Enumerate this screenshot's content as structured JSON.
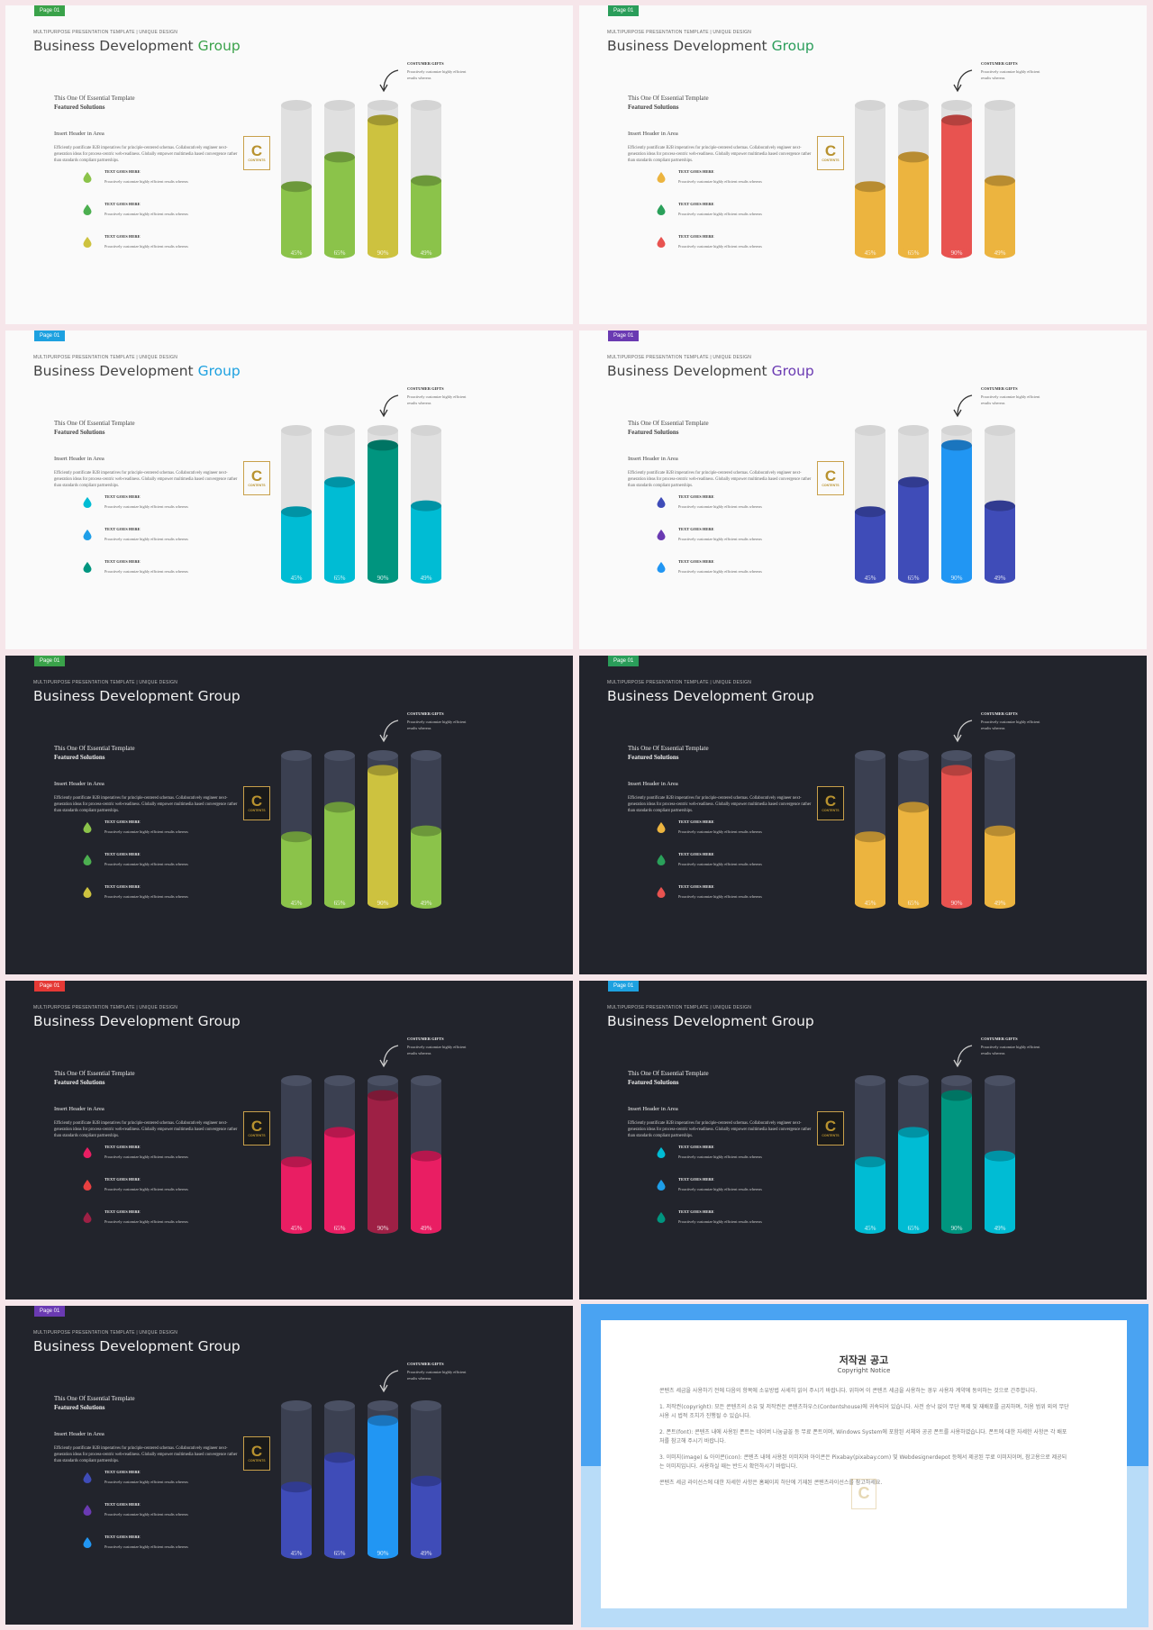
{
  "common": {
    "page_label": "Page 01",
    "supertitle": "MULTIPURPOSE PRESENTATION TEMPLATE | UNIQUE DESIGN",
    "title_main": "Business Development",
    "title_accent": "Group",
    "subhead_line1": "This One Of Essential Template",
    "subhead_line2": "Featured Solutions",
    "insert_header": "Insert Header in Area",
    "body_text": "Efficiently pontificate B2B imperatives for principle-centered schemas. Collaboratively engineer next-generation ideas for process-centric web-readiness. Globally empower multimedia based convergence rather than standards compliant partnerships.",
    "bullet_title": "TEXT GOES HERE",
    "bullet_desc": "Proactively customize highly efficient results whereas",
    "gift_title": "COSTUMER GIFTS",
    "gift_desc": "Proactively customize highly efficient results whereas",
    "logo_letter": "C",
    "logo_text": "CONTENTS",
    "icons": {
      "drop": "water-drop-icon",
      "arrow": "curved-arrow-icon",
      "logo": "contents-logo-icon"
    }
  },
  "bar_values": [
    45,
    65,
    90,
    49
  ],
  "bar_labels": [
    "45%",
    "65%",
    "90%",
    "49%"
  ],
  "slides": [
    {
      "theme": "light",
      "tag_color": "#3aa24a",
      "accent_color": "#3aa24a",
      "bar_colors": [
        "#8bc34a",
        "#8bc34a",
        "#cdc23f",
        "#8bc34a"
      ],
      "drop_colors": [
        "#8bc34a",
        "#4caf50",
        "#cdc23f"
      ]
    },
    {
      "theme": "light",
      "tag_color": "#2a9d5a",
      "accent_color": "#2a9d5a",
      "bar_colors": [
        "#ecb43f",
        "#ecb43f",
        "#e85350",
        "#ecb43f"
      ],
      "drop_colors": [
        "#ecb43f",
        "#2aa05a",
        "#e85350"
      ]
    },
    {
      "theme": "light",
      "tag_color": "#1da1e0",
      "accent_color": "#1da1e0",
      "bar_colors": [
        "#00bcd4",
        "#00bcd4",
        "#00957f",
        "#00bcd4"
      ],
      "drop_colors": [
        "#00bcd4",
        "#1e9ee8",
        "#00957f"
      ]
    },
    {
      "theme": "light",
      "tag_color": "#6a3ab2",
      "accent_color": "#6a3ab2",
      "bar_colors": [
        "#3f4cb8",
        "#3f4cb8",
        "#2196f3",
        "#3f4cb8"
      ],
      "drop_colors": [
        "#3f4cb8",
        "#6a3ab2",
        "#2196f3"
      ]
    },
    {
      "theme": "dark",
      "tag_color": "#3aa24a",
      "accent_color": "#f2f2f2",
      "bar_colors": [
        "#8bc34a",
        "#8bc34a",
        "#cdc23f",
        "#8bc34a"
      ],
      "drop_colors": [
        "#8bc34a",
        "#4caf50",
        "#cdc23f"
      ]
    },
    {
      "theme": "dark",
      "tag_color": "#2a9d5a",
      "accent_color": "#f2f2f2",
      "bar_colors": [
        "#ecb43f",
        "#ecb43f",
        "#e85350",
        "#ecb43f"
      ],
      "drop_colors": [
        "#ecb43f",
        "#2aa05a",
        "#e85350"
      ]
    },
    {
      "theme": "dark",
      "tag_color": "#e53935",
      "accent_color": "#f2f2f2",
      "bar_colors": [
        "#e91e63",
        "#e91e63",
        "#9e2045",
        "#e91e63"
      ],
      "drop_colors": [
        "#e91e63",
        "#e84040",
        "#9e2045"
      ]
    },
    {
      "theme": "dark",
      "tag_color": "#1da1e0",
      "accent_color": "#f2f2f2",
      "bar_colors": [
        "#00bcd4",
        "#00bcd4",
        "#00957f",
        "#00bcd4"
      ],
      "drop_colors": [
        "#00bcd4",
        "#1e9ee8",
        "#00957f"
      ]
    },
    {
      "theme": "dark",
      "tag_color": "#6a3ab2",
      "accent_color": "#f2f2f2",
      "bar_colors": [
        "#3f4cb8",
        "#3f4cb8",
        "#2196f3",
        "#3f4cb8"
      ],
      "drop_colors": [
        "#3f4cb8",
        "#6a3ab2",
        "#2196f3"
      ]
    }
  ],
  "notice": {
    "title": "저작권 공고",
    "subtitle": "Copyright Notice",
    "intro": "콘텐츠 세금을 사용하기 전에 다음의 항목에 소유방법 사세히 읽어 주시기 바랍니다. 위하여 이 콘텐츠 세금을 사용하는 경우 사용자 계약에 동의하는 것으로 간주합니다.",
    "item1": "1. 저작권(copyright): 모든 콘텐츠의 소유 및 저작권은 콘텐츠하우스(Contentshouse)에 귀속되어 있습니다. 사전 승낙 없이 무단 복제 및 재배포를 금지하며, 허용 범위 외의 무단 사용 시 법적 조치가 진행될 수 있습니다.",
    "item2": "2. 폰트(font): 콘텐츠 내에 사용된 폰트는 네이버 나눔글꼴 등 무료 폰트이며, Windows System에 포함된 서체와 공공 폰트를 사용하였습니다. 폰트에 대한 자세한 사항은 각 배포처를 참고해 주시기 바랍니다.",
    "item3": "3. 이미지(image) & 아이콘(icon): 콘텐츠 내에 사용된 이미지와 아이콘은 Pixabay(pixabay.com) 및 Webdesignerdepot 등에서 제공된 무료 이미지이며, 참고용으로 제공되는 이미지입니다. 사용하실 때는 반드시 확인하시기 바랍니다.",
    "outro": "콘텐츠 세금 라이선스에 대한 자세한 사항은 홈페이지 하단에 기재된 콘텐츠라이선스를 참고하세요."
  }
}
